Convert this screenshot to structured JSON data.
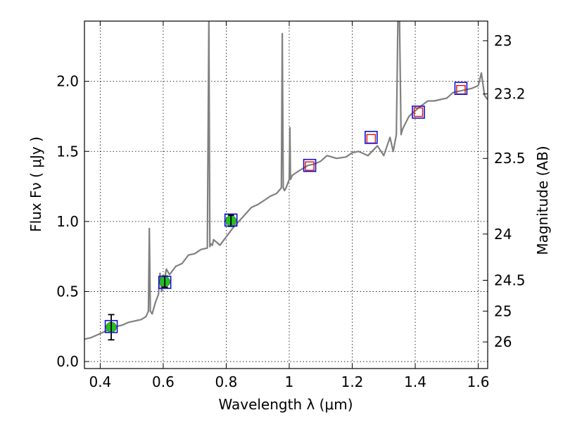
{
  "chart_data": {
    "type": "line",
    "xlabel": "Wavelength  λ (μm)",
    "ylabel": "Flux  Fν  ( μJy )",
    "y2label": "Magnitude (AB)",
    "xlim": [
      0.35,
      1.63
    ],
    "ylim": [
      -0.05,
      2.43
    ],
    "grid": true,
    "x_ticks": [
      {
        "value": 0.4,
        "label": "0.4"
      },
      {
        "value": 0.6,
        "label": "0.6"
      },
      {
        "value": 0.8,
        "label": "0.8"
      },
      {
        "value": 1.0,
        "label": "1"
      },
      {
        "value": 1.2,
        "label": "1.2"
      },
      {
        "value": 1.4,
        "label": "1.4"
      },
      {
        "value": 1.6,
        "label": "1.6"
      }
    ],
    "y_ticks": [
      {
        "value": 0.0,
        "label": "0.0"
      },
      {
        "value": 0.5,
        "label": "0.5"
      },
      {
        "value": 1.0,
        "label": "1.0"
      },
      {
        "value": 1.5,
        "label": "1.5"
      },
      {
        "value": 2.0,
        "label": "2.0"
      }
    ],
    "magnitude_ticks": [
      {
        "flux": 2.29,
        "label": "23"
      },
      {
        "flux": 1.91,
        "label": "23.2"
      },
      {
        "flux": 1.45,
        "label": "23.5"
      },
      {
        "flux": 0.91,
        "label": "24"
      },
      {
        "flux": 0.58,
        "label": "24.5"
      },
      {
        "flux": 0.36,
        "label": "25"
      },
      {
        "flux": 0.14,
        "label": "26"
      }
    ],
    "series": [
      {
        "type": "spectrum",
        "color": "#808080",
        "x": [
          0.35,
          0.37,
          0.39,
          0.41,
          0.43,
          0.45,
          0.47,
          0.49,
          0.51,
          0.53,
          0.545,
          0.553,
          0.556,
          0.559,
          0.565,
          0.575,
          0.585,
          0.59,
          0.595,
          0.6,
          0.605,
          0.61,
          0.62,
          0.64,
          0.66,
          0.68,
          0.7,
          0.72,
          0.74,
          0.745,
          0.748,
          0.751,
          0.756,
          0.76,
          0.78,
          0.8,
          0.82,
          0.84,
          0.86,
          0.88,
          0.9,
          0.92,
          0.94,
          0.96,
          0.975,
          0.978,
          0.981,
          0.985,
          0.99,
          1.0,
          1.002,
          1.004,
          1.01,
          1.03,
          1.06,
          1.08,
          1.1,
          1.12,
          1.15,
          1.18,
          1.2,
          1.22,
          1.25,
          1.28,
          1.3,
          1.32,
          1.33,
          1.34,
          1.345,
          1.35,
          1.355,
          1.36,
          1.38,
          1.41,
          1.44,
          1.46,
          1.48,
          1.5,
          1.52,
          1.54,
          1.56,
          1.58,
          1.6,
          1.61,
          1.62,
          1.63
        ],
        "y": [
          0.16,
          0.17,
          0.19,
          0.21,
          0.23,
          0.25,
          0.26,
          0.28,
          0.29,
          0.3,
          0.32,
          0.36,
          0.95,
          0.36,
          0.34,
          0.42,
          0.48,
          0.63,
          0.5,
          0.55,
          0.6,
          0.66,
          0.62,
          0.68,
          0.7,
          0.76,
          0.77,
          0.8,
          0.81,
          2.43,
          0.82,
          0.84,
          0.83,
          0.87,
          0.83,
          0.89,
          0.95,
          1.0,
          1.05,
          1.1,
          1.12,
          1.15,
          1.18,
          1.2,
          1.24,
          2.34,
          1.24,
          1.22,
          1.24,
          1.3,
          1.67,
          1.3,
          1.33,
          1.36,
          1.4,
          1.41,
          1.43,
          1.47,
          1.45,
          1.46,
          1.49,
          1.5,
          1.47,
          1.54,
          1.47,
          1.6,
          1.5,
          1.62,
          2.43,
          2.43,
          1.62,
          1.66,
          1.75,
          1.81,
          1.86,
          1.86,
          1.87,
          1.88,
          1.92,
          1.93,
          1.94,
          1.95,
          1.97,
          2.06,
          1.9,
          1.87
        ]
      }
    ],
    "photometry": [
      {
        "x": 0.435,
        "flux": 0.245,
        "model": 0.25,
        "err": 0.09,
        "kind": "filled",
        "color": "#22c022"
      },
      {
        "x": 0.605,
        "flux": 0.57,
        "model": 0.565,
        "err": 0.04,
        "kind": "filled",
        "color": "#22c022"
      },
      {
        "x": 0.815,
        "flux": 1.005,
        "model": 1.01,
        "err": 0.04,
        "kind": "filled",
        "color": "#22c022"
      },
      {
        "x": 1.065,
        "flux": 1.395,
        "model": 1.4,
        "err": 0.0,
        "kind": "open",
        "color": "#dd1111"
      },
      {
        "x": 1.26,
        "flux": 1.59,
        "model": 1.6,
        "err": 0.0,
        "kind": "open",
        "color": "#dd1111"
      },
      {
        "x": 1.41,
        "flux": 1.78,
        "model": 1.78,
        "err": 0.0,
        "kind": "open",
        "color": "#dd1111"
      },
      {
        "x": 1.545,
        "flux": 1.94,
        "model": 1.95,
        "err": 0.0,
        "kind": "open",
        "color": "#dd1111"
      }
    ],
    "model_marker_color": "#1010cc"
  }
}
